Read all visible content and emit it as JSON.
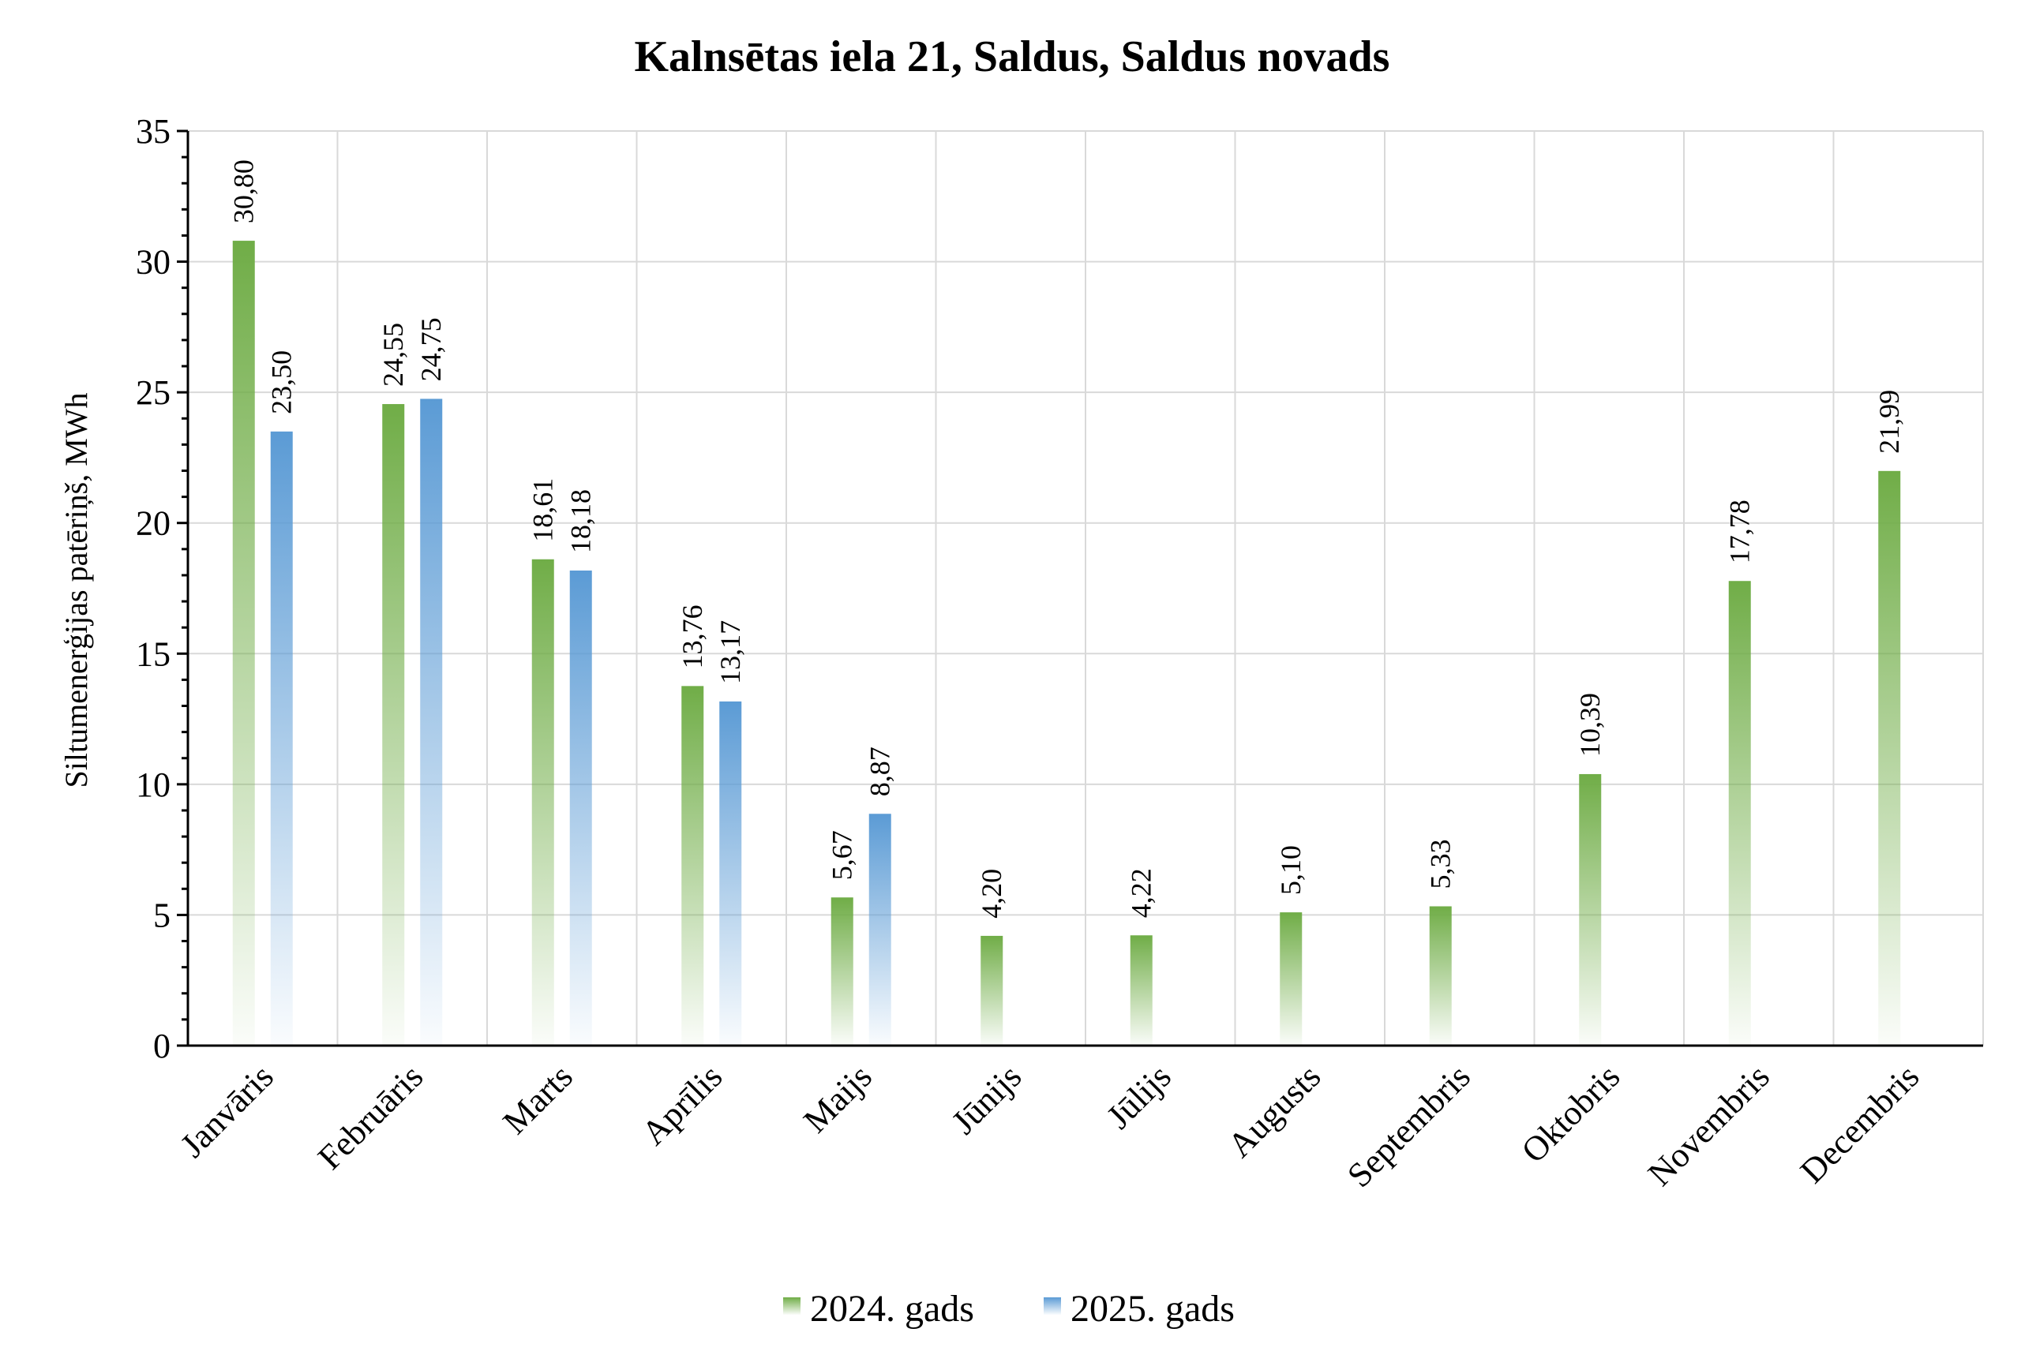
{
  "chart_data": {
    "type": "bar",
    "title": "Kalnsētas iela 21, Saldus, Saldus novads",
    "ylabel": "Siltumenerģijas patēriņš, MWh",
    "xlabel": "",
    "ylim": [
      0,
      35
    ],
    "yticks": [
      "0",
      "5",
      "10",
      "15",
      "20",
      "25",
      "30",
      "35"
    ],
    "categories": [
      "Janvāris",
      "Februāris",
      "Marts",
      "Aprīlis",
      "Maijs",
      "Jūnijs",
      "Jūlijs",
      "Augusts",
      "Septembris",
      "Oktobris",
      "Novembris",
      "Decembris"
    ],
    "series": [
      {
        "name": "2024. gads",
        "color": "#70ad47",
        "values": [
          30.8,
          24.55,
          18.61,
          13.76,
          5.67,
          4.2,
          4.22,
          5.1,
          5.33,
          10.39,
          17.78,
          21.99
        ],
        "labels": [
          "30,80",
          "24,55",
          "18,61",
          "13,76",
          "5,67",
          "4,20",
          "4,22",
          "5,10",
          "5,33",
          "10,39",
          "17,78",
          "21,99"
        ]
      },
      {
        "name": "2025. gads",
        "color": "#5b9bd5",
        "values": [
          23.5,
          24.75,
          18.18,
          13.17,
          8.87,
          null,
          null,
          null,
          null,
          null,
          null,
          null
        ],
        "labels": [
          "23,50",
          "24,75",
          "18,18",
          "13,17",
          "8,87",
          "",
          "",
          "",
          "",
          "",
          "",
          ""
        ]
      }
    ],
    "grid": true,
    "legend_position": "bottom-center"
  }
}
